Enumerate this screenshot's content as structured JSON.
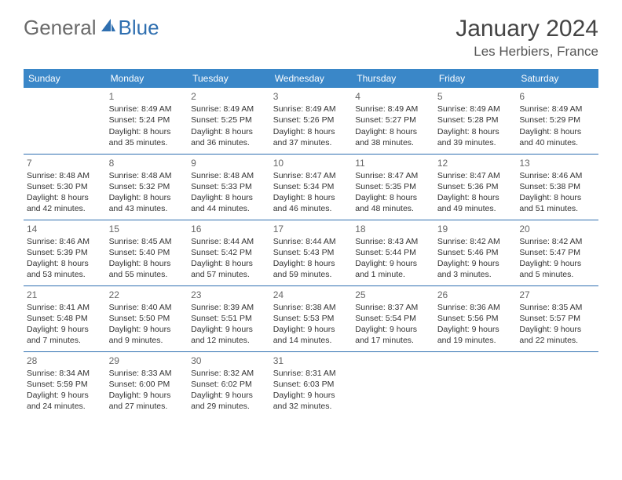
{
  "logo": {
    "general": "General",
    "blue": "Blue"
  },
  "header": {
    "month_title": "January 2024",
    "location": "Les Herbiers, France"
  },
  "colors": {
    "header_bg": "#3a87c8",
    "header_fg": "#ffffff",
    "row_border": "#2f6fb0",
    "logo_gray": "#6a6a6a",
    "logo_blue": "#2f6fb0"
  },
  "weekdays": [
    "Sunday",
    "Monday",
    "Tuesday",
    "Wednesday",
    "Thursday",
    "Friday",
    "Saturday"
  ],
  "weeks": [
    [
      {
        "day": "",
        "sunrise": "",
        "sunset": "",
        "daylight": ""
      },
      {
        "day": "1",
        "sunrise": "Sunrise: 8:49 AM",
        "sunset": "Sunset: 5:24 PM",
        "daylight": "Daylight: 8 hours and 35 minutes."
      },
      {
        "day": "2",
        "sunrise": "Sunrise: 8:49 AM",
        "sunset": "Sunset: 5:25 PM",
        "daylight": "Daylight: 8 hours and 36 minutes."
      },
      {
        "day": "3",
        "sunrise": "Sunrise: 8:49 AM",
        "sunset": "Sunset: 5:26 PM",
        "daylight": "Daylight: 8 hours and 37 minutes."
      },
      {
        "day": "4",
        "sunrise": "Sunrise: 8:49 AM",
        "sunset": "Sunset: 5:27 PM",
        "daylight": "Daylight: 8 hours and 38 minutes."
      },
      {
        "day": "5",
        "sunrise": "Sunrise: 8:49 AM",
        "sunset": "Sunset: 5:28 PM",
        "daylight": "Daylight: 8 hours and 39 minutes."
      },
      {
        "day": "6",
        "sunrise": "Sunrise: 8:49 AM",
        "sunset": "Sunset: 5:29 PM",
        "daylight": "Daylight: 8 hours and 40 minutes."
      }
    ],
    [
      {
        "day": "7",
        "sunrise": "Sunrise: 8:48 AM",
        "sunset": "Sunset: 5:30 PM",
        "daylight": "Daylight: 8 hours and 42 minutes."
      },
      {
        "day": "8",
        "sunrise": "Sunrise: 8:48 AM",
        "sunset": "Sunset: 5:32 PM",
        "daylight": "Daylight: 8 hours and 43 minutes."
      },
      {
        "day": "9",
        "sunrise": "Sunrise: 8:48 AM",
        "sunset": "Sunset: 5:33 PM",
        "daylight": "Daylight: 8 hours and 44 minutes."
      },
      {
        "day": "10",
        "sunrise": "Sunrise: 8:47 AM",
        "sunset": "Sunset: 5:34 PM",
        "daylight": "Daylight: 8 hours and 46 minutes."
      },
      {
        "day": "11",
        "sunrise": "Sunrise: 8:47 AM",
        "sunset": "Sunset: 5:35 PM",
        "daylight": "Daylight: 8 hours and 48 minutes."
      },
      {
        "day": "12",
        "sunrise": "Sunrise: 8:47 AM",
        "sunset": "Sunset: 5:36 PM",
        "daylight": "Daylight: 8 hours and 49 minutes."
      },
      {
        "day": "13",
        "sunrise": "Sunrise: 8:46 AM",
        "sunset": "Sunset: 5:38 PM",
        "daylight": "Daylight: 8 hours and 51 minutes."
      }
    ],
    [
      {
        "day": "14",
        "sunrise": "Sunrise: 8:46 AM",
        "sunset": "Sunset: 5:39 PM",
        "daylight": "Daylight: 8 hours and 53 minutes."
      },
      {
        "day": "15",
        "sunrise": "Sunrise: 8:45 AM",
        "sunset": "Sunset: 5:40 PM",
        "daylight": "Daylight: 8 hours and 55 minutes."
      },
      {
        "day": "16",
        "sunrise": "Sunrise: 8:44 AM",
        "sunset": "Sunset: 5:42 PM",
        "daylight": "Daylight: 8 hours and 57 minutes."
      },
      {
        "day": "17",
        "sunrise": "Sunrise: 8:44 AM",
        "sunset": "Sunset: 5:43 PM",
        "daylight": "Daylight: 8 hours and 59 minutes."
      },
      {
        "day": "18",
        "sunrise": "Sunrise: 8:43 AM",
        "sunset": "Sunset: 5:44 PM",
        "daylight": "Daylight: 9 hours and 1 minute."
      },
      {
        "day": "19",
        "sunrise": "Sunrise: 8:42 AM",
        "sunset": "Sunset: 5:46 PM",
        "daylight": "Daylight: 9 hours and 3 minutes."
      },
      {
        "day": "20",
        "sunrise": "Sunrise: 8:42 AM",
        "sunset": "Sunset: 5:47 PM",
        "daylight": "Daylight: 9 hours and 5 minutes."
      }
    ],
    [
      {
        "day": "21",
        "sunrise": "Sunrise: 8:41 AM",
        "sunset": "Sunset: 5:48 PM",
        "daylight": "Daylight: 9 hours and 7 minutes."
      },
      {
        "day": "22",
        "sunrise": "Sunrise: 8:40 AM",
        "sunset": "Sunset: 5:50 PM",
        "daylight": "Daylight: 9 hours and 9 minutes."
      },
      {
        "day": "23",
        "sunrise": "Sunrise: 8:39 AM",
        "sunset": "Sunset: 5:51 PM",
        "daylight": "Daylight: 9 hours and 12 minutes."
      },
      {
        "day": "24",
        "sunrise": "Sunrise: 8:38 AM",
        "sunset": "Sunset: 5:53 PM",
        "daylight": "Daylight: 9 hours and 14 minutes."
      },
      {
        "day": "25",
        "sunrise": "Sunrise: 8:37 AM",
        "sunset": "Sunset: 5:54 PM",
        "daylight": "Daylight: 9 hours and 17 minutes."
      },
      {
        "day": "26",
        "sunrise": "Sunrise: 8:36 AM",
        "sunset": "Sunset: 5:56 PM",
        "daylight": "Daylight: 9 hours and 19 minutes."
      },
      {
        "day": "27",
        "sunrise": "Sunrise: 8:35 AM",
        "sunset": "Sunset: 5:57 PM",
        "daylight": "Daylight: 9 hours and 22 minutes."
      }
    ],
    [
      {
        "day": "28",
        "sunrise": "Sunrise: 8:34 AM",
        "sunset": "Sunset: 5:59 PM",
        "daylight": "Daylight: 9 hours and 24 minutes."
      },
      {
        "day": "29",
        "sunrise": "Sunrise: 8:33 AM",
        "sunset": "Sunset: 6:00 PM",
        "daylight": "Daylight: 9 hours and 27 minutes."
      },
      {
        "day": "30",
        "sunrise": "Sunrise: 8:32 AM",
        "sunset": "Sunset: 6:02 PM",
        "daylight": "Daylight: 9 hours and 29 minutes."
      },
      {
        "day": "31",
        "sunrise": "Sunrise: 8:31 AM",
        "sunset": "Sunset: 6:03 PM",
        "daylight": "Daylight: 9 hours and 32 minutes."
      },
      {
        "day": "",
        "sunrise": "",
        "sunset": "",
        "daylight": ""
      },
      {
        "day": "",
        "sunrise": "",
        "sunset": "",
        "daylight": ""
      },
      {
        "day": "",
        "sunrise": "",
        "sunset": "",
        "daylight": ""
      }
    ]
  ]
}
